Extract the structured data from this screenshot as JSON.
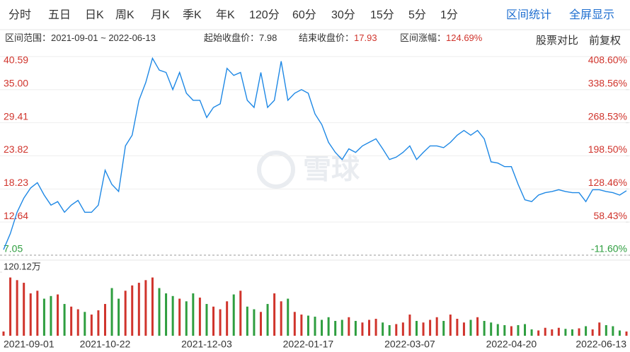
{
  "tabs": [
    "分时",
    "五日",
    "日K",
    "周K",
    "月K",
    "季K",
    "年K",
    "120分",
    "60分",
    "30分",
    "15分",
    "5分",
    "1分"
  ],
  "actions": [
    "区间统计",
    "全屏显示"
  ],
  "info": [
    {
      "label": "区间范围：",
      "value": "2021-09-01 ~ 2022-06-13"
    },
    {
      "label": "起始收盘价：",
      "value": 7.98
    },
    {
      "label": "结束收盘价：",
      "value": 17.93
    },
    {
      "label": "区间涨幅：",
      "value": "124.69%"
    }
  ],
  "tools": [
    "股票对比",
    "前复权"
  ],
  "watermark": "雪球",
  "chart_data": [
    {
      "type": "line",
      "color": "#1e88e5",
      "values": [
        7.98,
        10.7,
        14.3,
        16.7,
        18.4,
        19.3,
        17.2,
        15.5,
        16.1,
        14.3,
        15.5,
        16.3,
        14.3,
        14.3,
        15.5,
        21.4,
        19.0,
        17.8,
        25.5,
        27.3,
        33.2,
        36.2,
        40.3,
        38.3,
        37.9,
        35.0,
        37.9,
        34.4,
        33.2,
        33.2,
        30.3,
        32.0,
        32.6,
        38.6,
        37.4,
        37.9,
        33.2,
        32.0,
        37.9,
        32.0,
        33.2,
        39.8,
        33.2,
        34.4,
        35.0,
        34.4,
        30.9,
        29.1,
        26.1,
        24.4,
        23.2,
        25.0,
        24.4,
        25.5,
        26.1,
        26.7,
        25.0,
        23.2,
        23.6,
        24.4,
        25.5,
        23.2,
        24.4,
        25.5,
        25.5,
        25.2,
        26.1,
        27.3,
        28.1,
        27.3,
        28.1,
        26.7,
        22.8,
        22.6,
        22.0,
        22.0,
        19.0,
        16.4,
        16.1,
        17.2,
        17.6,
        17.8,
        18.1,
        17.8,
        17.6,
        17.6,
        16.1,
        18.1,
        18.1,
        17.8,
        17.6,
        17.2,
        17.93
      ],
      "ylim": [
        7.05,
        40.59
      ],
      "yticks": [
        7.05,
        12.64,
        18.23,
        23.82,
        29.41,
        {
          "value": 35,
          "label": "35.00"
        },
        40.59
      ],
      "y2lim": [
        -11.6,
        408.6
      ],
      "y2ticks": [
        {
          "value": -11.6,
          "label": "-11.60%"
        },
        {
          "value": 58.43,
          "label": "58.43%"
        },
        {
          "value": 128.46,
          "label": "128.46%"
        },
        {
          "value": 198.5,
          "label": "198.50%"
        },
        {
          "value": 268.53,
          "label": "268.53%"
        },
        {
          "value": 338.56,
          "label": "338.56%"
        },
        {
          "value": 408.6,
          "label": "408.60%"
        }
      ],
      "grid": true,
      "up_color": "#d0342c",
      "down_color": "#2e9e3f"
    },
    {
      "type": "bar",
      "categories": [
        "2021-09-01",
        null,
        null,
        null,
        null,
        null,
        null,
        null,
        null,
        null,
        null,
        null,
        null,
        null,
        null,
        "2021-10-22",
        null,
        null,
        null,
        null,
        null,
        null,
        null,
        null,
        null,
        null,
        null,
        null,
        null,
        null,
        "2021-12-03",
        null,
        null,
        null,
        null,
        null,
        null,
        null,
        null,
        null,
        null,
        null,
        null,
        null,
        null,
        "2022-01-17",
        null,
        null,
        null,
        null,
        null,
        null,
        null,
        null,
        null,
        null,
        null,
        null,
        null,
        null,
        "2022-03-07",
        null,
        null,
        null,
        null,
        null,
        null,
        null,
        null,
        null,
        null,
        null,
        null,
        null,
        null,
        "2022-04-20",
        null,
        null,
        null,
        null,
        null,
        null,
        null,
        null,
        null,
        null,
        null,
        null,
        null,
        null,
        null,
        null,
        "2022-06-13"
      ],
      "values": [
        8,
        110,
        105,
        100,
        80,
        85,
        70,
        75,
        78,
        60,
        55,
        50,
        45,
        40,
        48,
        60,
        90,
        70,
        85,
        95,
        100,
        105,
        110,
        90,
        80,
        75,
        70,
        65,
        80,
        72,
        60,
        55,
        50,
        65,
        78,
        85,
        55,
        50,
        45,
        60,
        80,
        65,
        70,
        45,
        40,
        38,
        36,
        30,
        35,
        28,
        30,
        35,
        28,
        25,
        30,
        32,
        25,
        20,
        22,
        25,
        40,
        28,
        25,
        30,
        35,
        28,
        40,
        32,
        25,
        30,
        35,
        28,
        25,
        22,
        20,
        18,
        20,
        22,
        12,
        10,
        15,
        12,
        15,
        13,
        12,
        14,
        18,
        12,
        25,
        20,
        18,
        10,
        8
      ],
      "ylim": [
        0,
        120.12
      ],
      "yticks": [
        {
          "value": 120.12,
          "label": "120.12万"
        }
      ]
    }
  ]
}
